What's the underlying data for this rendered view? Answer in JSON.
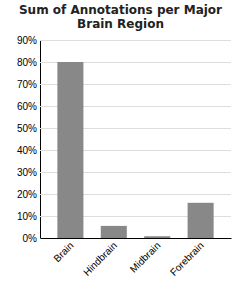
{
  "chart_data": {
    "type": "bar",
    "title": "Sum of Annotations per Major\nBrain Region",
    "categories": [
      "Brain",
      "Hindbrain",
      "Midbrain",
      "Forebrain"
    ],
    "values": [
      0.8,
      0.055,
      0.008,
      0.16
    ],
    "color": "#888888",
    "ylim": [
      0,
      0.9
    ],
    "yticks": [
      {
        "value": 0.0,
        "label": "0%"
      },
      {
        "value": 0.1,
        "label": "10%"
      },
      {
        "value": 0.2,
        "label": "20%"
      },
      {
        "value": 0.3,
        "label": "30%"
      },
      {
        "value": 0.4,
        "label": "40%"
      },
      {
        "value": 0.5,
        "label": "50%"
      },
      {
        "value": 0.6,
        "label": "60%"
      },
      {
        "value": 0.7,
        "label": "70%"
      },
      {
        "value": 0.8,
        "label": "80%"
      },
      {
        "value": 0.9,
        "label": "90%"
      }
    ],
    "grid": true
  }
}
